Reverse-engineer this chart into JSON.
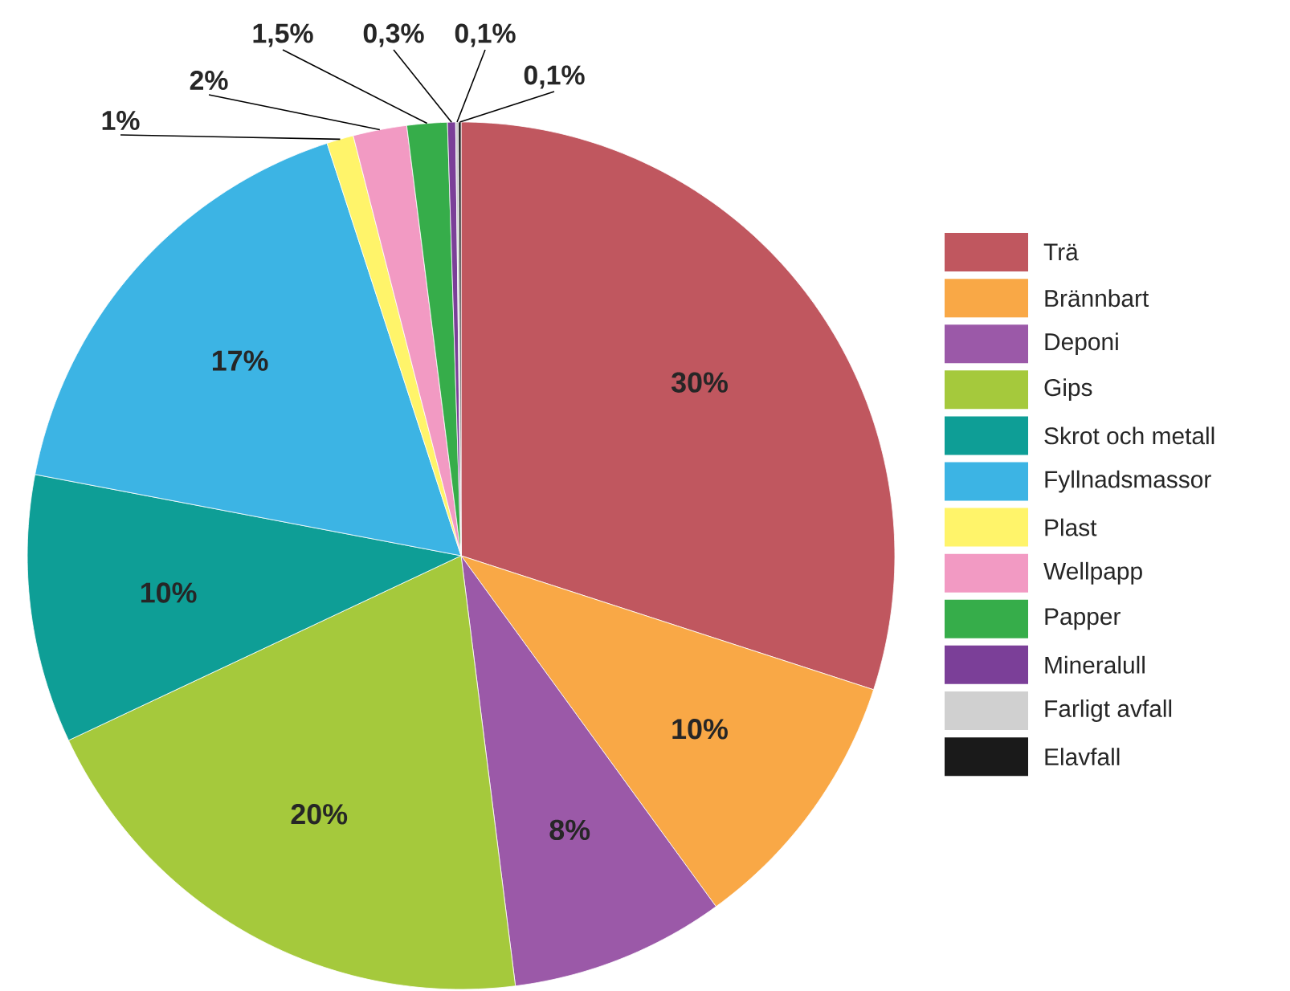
{
  "chart_data": {
    "type": "pie",
    "categories": [
      "Trä",
      "Brännbart",
      "Deponi",
      "Gips",
      "Skrot och metall",
      "Fyllnadsmassor",
      "Plast",
      "Wellpapp",
      "Papper",
      "Mineralull",
      "Farligt avfall",
      "Elavfall"
    ],
    "values": [
      30,
      10,
      8,
      20,
      10,
      17,
      1,
      2,
      1.5,
      0.3,
      0.1,
      0.1
    ],
    "colors": [
      "#c0575f",
      "#f9a846",
      "#9b59a8",
      "#a5c93c",
      "#0e9e96",
      "#3cb4e4",
      "#fff46a",
      "#f29ac3",
      "#36ad4a",
      "#7b3f98",
      "#d0d0d0",
      "#1a1a1a"
    ],
    "value_labels": [
      "30%",
      "10%",
      "8%",
      "20%",
      "10%",
      "17%",
      "1%",
      "2%",
      "1,5%",
      "0,3%",
      "0,1%",
      "0,1%"
    ],
    "legend": "right"
  }
}
